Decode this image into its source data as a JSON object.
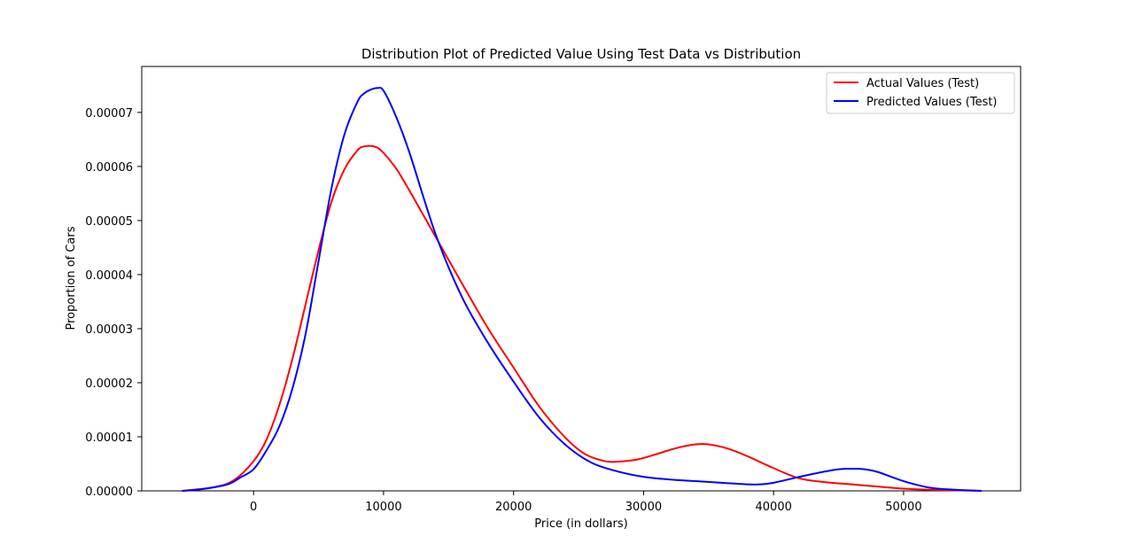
{
  "chart_data": {
    "type": "line",
    "title": "Distribution Plot of Predicted Value Using Test Data vs Distribution",
    "xlabel": "Price (in dollars)",
    "ylabel": "Proportion of Cars",
    "xlim": [
      -8600,
      59000
    ],
    "ylim": [
      0,
      7.85e-05
    ],
    "x_ticks": [
      0,
      10000,
      20000,
      30000,
      40000,
      50000
    ],
    "x_tick_labels": [
      "0",
      "10000",
      "20000",
      "30000",
      "40000",
      "50000"
    ],
    "y_ticks": [
      0,
      1e-05,
      2e-05,
      3e-05,
      4e-05,
      5e-05,
      6e-05,
      7e-05
    ],
    "y_tick_labels": [
      "0.00000",
      "0.00001",
      "0.00002",
      "0.00003",
      "0.00004",
      "0.00005",
      "0.00006",
      "0.00007"
    ],
    "grid": false,
    "legend_position": "top-right",
    "series": [
      {
        "name": "Actual Values (Test)",
        "color": "#ff0000",
        "x": [
          -5500,
          -3000,
          -1500,
          0,
          1000,
          2000,
          3000,
          4000,
          5000,
          6000,
          7000,
          8000,
          8500,
          9000,
          9500,
          10000,
          11000,
          12000,
          14000,
          16000,
          18000,
          20000,
          22000,
          24000,
          25500,
          27000,
          28000,
          29500,
          31000,
          32500,
          34000,
          35000,
          36500,
          38000,
          40000,
          42000,
          44000,
          46000,
          48000,
          50000,
          52000,
          54000,
          56000
        ],
        "y": [
          0.0,
          7e-07,
          2e-06,
          5.5e-06,
          9.5e-06,
          1.6e-05,
          2.45e-05,
          3.45e-05,
          4.45e-05,
          5.35e-05,
          5.95e-05,
          6.3e-05,
          6.37e-05,
          6.38e-05,
          6.35e-05,
          6.25e-05,
          5.95e-05,
          5.55e-05,
          4.7e-05,
          3.85e-05,
          3.02e-05,
          2.28e-05,
          1.55e-05,
          9.8e-06,
          6.8e-06,
          5.5e-06,
          5.4e-06,
          5.8e-06,
          6.8e-06,
          7.9e-06,
          8.6e-06,
          8.6e-06,
          7.8e-06,
          6.4e-06,
          4.2e-06,
          2.3e-06,
          1.6e-06,
          1.2e-06,
          8e-07,
          4e-07,
          2e-07,
          1e-07,
          0.0
        ]
      },
      {
        "name": "Predicted Values (Test)",
        "color": "#0000ff",
        "x": [
          -5500,
          -4000,
          -2000,
          -1000,
          0,
          1000,
          2000,
          3000,
          4000,
          5000,
          6000,
          7000,
          8000,
          8500,
          9000,
          9500,
          10000,
          11000,
          12000,
          14000,
          16000,
          18000,
          20000,
          22000,
          24000,
          26000,
          28000,
          30000,
          32000,
          34000,
          36000,
          38000,
          39000,
          40000,
          42000,
          44000,
          45000,
          46000,
          47000,
          48000,
          50000,
          52000,
          54000,
          56000
        ],
        "y": [
          0.0,
          3e-07,
          1.2e-06,
          2.5e-06,
          4e-06,
          7.5e-06,
          1.2e-05,
          1.9e-05,
          2.9e-05,
          4.25e-05,
          5.6e-05,
          6.6e-05,
          7.2e-05,
          7.35e-05,
          7.42e-05,
          7.45e-05,
          7.4e-05,
          6.9e-05,
          6.25e-05,
          4.75e-05,
          3.6e-05,
          2.75e-05,
          2.02e-05,
          1.35e-05,
          8.5e-06,
          5.2e-06,
          3.6e-06,
          2.6e-06,
          2.1e-06,
          1.8e-06,
          1.5e-06,
          1.2e-06,
          1.2e-06,
          1.5e-06,
          2.6e-06,
          3.6e-06,
          4e-06,
          4.1e-06,
          4e-06,
          3.5e-06,
          1.8e-06,
          6e-07,
          2e-07,
          0.0
        ]
      }
    ]
  }
}
